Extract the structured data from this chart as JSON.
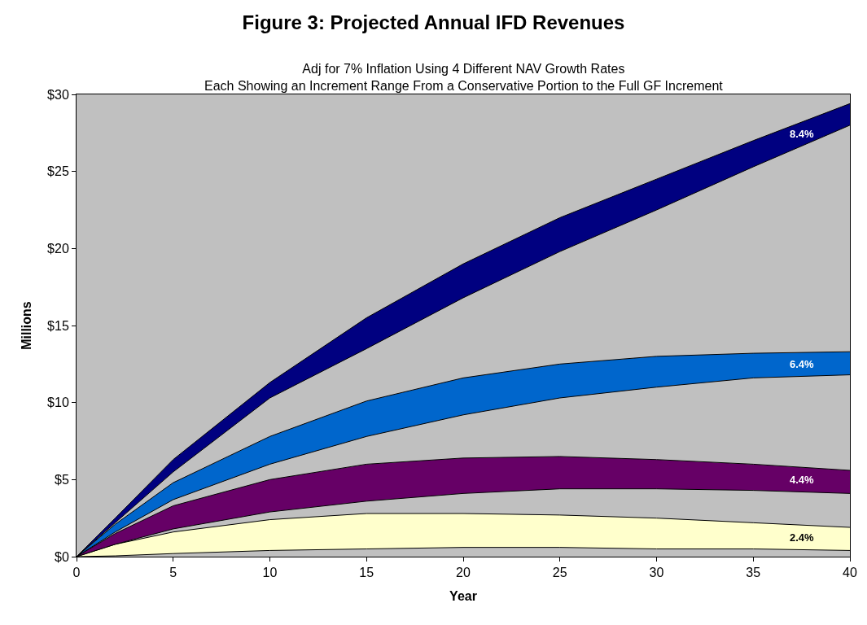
{
  "chart_data": {
    "type": "area",
    "stacked": true,
    "title": "Figure 3: Projected Annual IFD Revenues",
    "subtitle": "Adj for 7% Inflation Using 4 Different NAV Growth Rates\nEach Showing an Increment Range From a Conservative Portion to the Full GF Increment",
    "xlabel": "Year",
    "ylabel": "Millions",
    "x": [
      0,
      2,
      5,
      10,
      15,
      20,
      25,
      30,
      35,
      40
    ],
    "series": [
      {
        "color": "#c0c0c0",
        "values": [
          0,
          0.05,
          0.2,
          0.4,
          0.5,
          0.6,
          0.6,
          0.5,
          0.5,
          0.4
        ]
      },
      {
        "name": "2.4%",
        "color": "#ffffcc",
        "values": [
          0,
          0.75,
          1.4,
          2.0,
          2.3,
          2.2,
          2.1,
          2.0,
          1.7,
          1.5
        ]
      },
      {
        "color": "#c0c0c0",
        "values": [
          0,
          0,
          0.2,
          0.5,
          0.8,
          1.3,
          1.7,
          1.9,
          2.1,
          2.2
        ]
      },
      {
        "name": "4.4%",
        "color": "#660066",
        "values": [
          0,
          0.7,
          1.5,
          2.1,
          2.4,
          2.3,
          2.1,
          1.9,
          1.7,
          1.5
        ]
      },
      {
        "color": "#c0c0c0",
        "values": [
          0,
          0.1,
          0.4,
          1.0,
          1.8,
          2.8,
          3.8,
          4.7,
          5.6,
          6.2
        ]
      },
      {
        "name": "6.4%",
        "color": "#0066cc",
        "values": [
          0,
          0.5,
          1.1,
          1.8,
          2.3,
          2.4,
          2.2,
          2.0,
          1.6,
          1.5
        ]
      },
      {
        "color": "#c0c0c0",
        "values": [
          0,
          0.1,
          0.7,
          2.5,
          3.4,
          5.2,
          7.3,
          9.5,
          12.1,
          14.7
        ]
      },
      {
        "name": "8.4%",
        "color": "#000080",
        "values": [
          0,
          0.3,
          0.8,
          1.0,
          2.0,
          2.2,
          2.2,
          2.0,
          1.7,
          1.4
        ]
      }
    ],
    "xlim": [
      0,
      40
    ],
    "xticks": [
      0,
      5,
      10,
      15,
      20,
      25,
      30,
      35,
      40
    ],
    "ylim": [
      0,
      30
    ],
    "yticks": [
      {
        "value": 0,
        "label": "$0"
      },
      {
        "value": 5,
        "label": "$5"
      },
      {
        "value": 10,
        "label": "$10"
      },
      {
        "value": 15,
        "label": "$15"
      },
      {
        "value": 20,
        "label": "$20"
      },
      {
        "value": 25,
        "label": "$25"
      },
      {
        "value": 30,
        "label": "$30"
      }
    ],
    "grid": false
  }
}
